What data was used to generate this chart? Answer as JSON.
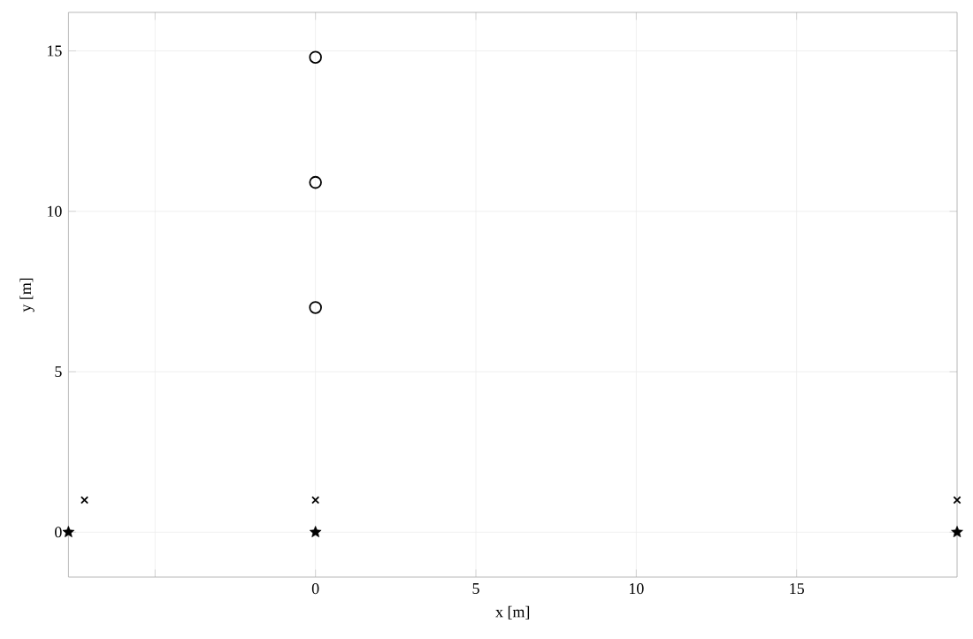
{
  "chart_data": {
    "type": "scatter",
    "xlabel": "x [m]",
    "ylabel": "y [m]",
    "xlim": [
      -7.7,
      20
    ],
    "ylim": [
      -1.4,
      16.2
    ],
    "xticks": [
      {
        "value": -5,
        "label": null
      },
      0,
      5,
      10,
      15
    ],
    "yticks": [
      0,
      5,
      10,
      15
    ],
    "grid": true,
    "series": [
      {
        "color": "#000000",
        "marker": "circle",
        "x": [
          0,
          0,
          0
        ],
        "values": [
          7.0,
          10.9,
          14.8
        ]
      },
      {
        "color": "#000000",
        "marker": "cross",
        "x": [
          -7.2,
          0,
          20
        ],
        "values": [
          1,
          1,
          1
        ]
      },
      {
        "color": "#000000",
        "marker": "star",
        "x": [
          -7.7,
          0,
          20
        ],
        "values": [
          0,
          0,
          0
        ]
      }
    ]
  }
}
